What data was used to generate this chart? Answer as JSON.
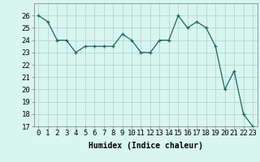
{
  "x": [
    0,
    1,
    2,
    3,
    4,
    5,
    6,
    7,
    8,
    9,
    10,
    11,
    12,
    13,
    14,
    15,
    16,
    17,
    18,
    19,
    20,
    21,
    22,
    23
  ],
  "y": [
    26,
    25.5,
    24,
    24,
    23,
    23.5,
    23.5,
    23.5,
    23.5,
    24.5,
    24,
    23,
    23,
    24,
    24,
    26,
    25,
    25.5,
    25,
    23.5,
    20,
    21.5,
    18,
    17
  ],
  "line_color": "#1a6b5a",
  "marker_color": "#1a6b5a",
  "bg_color": "#d8f5f0",
  "grid_color": "#b0d0cc",
  "xlabel": "Humidex (Indice chaleur)",
  "ylim": [
    17,
    27
  ],
  "yticks": [
    17,
    18,
    19,
    20,
    21,
    22,
    23,
    24,
    25,
    26
  ],
  "xticks": [
    0,
    1,
    2,
    3,
    4,
    5,
    6,
    7,
    8,
    9,
    10,
    11,
    12,
    13,
    14,
    15,
    16,
    17,
    18,
    19,
    20,
    21,
    22,
    23
  ],
  "xlabel_fontsize": 7,
  "tick_fontsize": 6.5
}
